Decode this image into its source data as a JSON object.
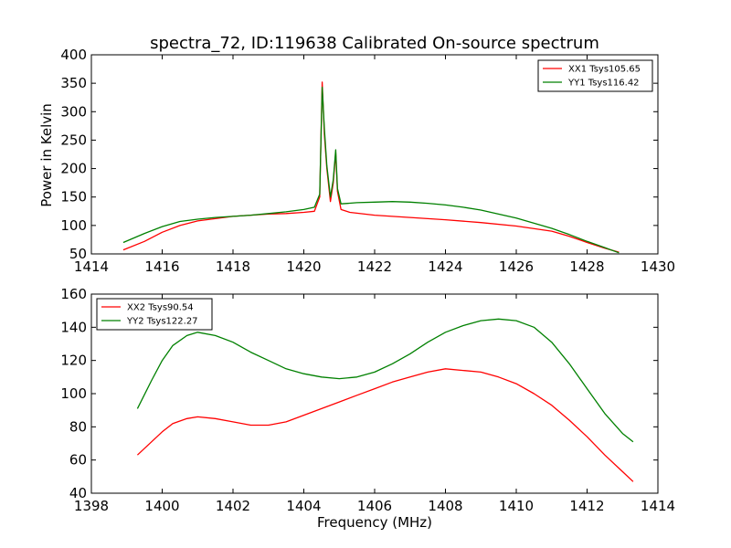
{
  "chart_data": [
    {
      "type": "line",
      "title": "spectra_72, ID:119638 Calibrated On-source spectrum",
      "xlabel": "",
      "ylabel": "Power in Kelvin",
      "xlim": [
        1414,
        1430
      ],
      "ylim": [
        50,
        400
      ],
      "xticks": [
        "1414",
        "1416",
        "1418",
        "1420",
        "1422",
        "1424",
        "1426",
        "1428",
        "1430"
      ],
      "yticks": [
        "50",
        "100",
        "150",
        "200",
        "250",
        "300",
        "350",
        "400"
      ],
      "legend": "top-right",
      "grid": false,
      "series": [
        {
          "name": "XX1 Tsys105.65",
          "color": "#ff0000",
          "x": [
            1414.9,
            1415.5,
            1416.0,
            1416.5,
            1417.0,
            1417.5,
            1418.0,
            1418.5,
            1419.0,
            1419.5,
            1420.0,
            1420.3,
            1420.45,
            1420.52,
            1420.58,
            1420.65,
            1420.75,
            1420.83,
            1420.9,
            1420.95,
            1421.05,
            1421.3,
            1422.0,
            1423.0,
            1424.0,
            1425.0,
            1426.0,
            1427.0,
            1427.5,
            1428.0,
            1428.5,
            1428.9
          ],
          "y": [
            57,
            72,
            88,
            100,
            108,
            112,
            116,
            118,
            120,
            121,
            123,
            125,
            150,
            352,
            260,
            200,
            142,
            175,
            228,
            160,
            128,
            123,
            118,
            114,
            110,
            105,
            99,
            90,
            81,
            70,
            60,
            53
          ]
        },
        {
          "name": "YY1 Tsys116.42",
          "color": "#008000",
          "x": [
            1414.9,
            1415.5,
            1416.0,
            1416.5,
            1417.0,
            1417.5,
            1418.0,
            1418.5,
            1419.0,
            1419.5,
            1420.0,
            1420.3,
            1420.45,
            1420.52,
            1420.58,
            1420.65,
            1420.75,
            1420.83,
            1420.9,
            1420.95,
            1421.05,
            1421.5,
            1422.0,
            1422.5,
            1423.0,
            1423.5,
            1424.0,
            1424.5,
            1425.0,
            1425.5,
            1426.0,
            1426.5,
            1427.0,
            1427.5,
            1428.0,
            1428.5,
            1428.9
          ],
          "y": [
            70,
            86,
            98,
            107,
            111,
            114,
            116,
            118,
            121,
            124,
            128,
            132,
            155,
            343,
            270,
            205,
            150,
            180,
            233,
            165,
            138,
            140,
            141,
            142,
            141,
            139,
            136,
            132,
            127,
            120,
            113,
            104,
            95,
            84,
            72,
            61,
            52
          ]
        }
      ]
    },
    {
      "type": "line",
      "title": "",
      "xlabel": "Frequency (MHz)",
      "ylabel": "",
      "xlim": [
        1398,
        1414
      ],
      "ylim": [
        40,
        160
      ],
      "xticks": [
        "1398",
        "1400",
        "1402",
        "1404",
        "1406",
        "1408",
        "1410",
        "1412",
        "1414"
      ],
      "yticks": [
        "40",
        "60",
        "80",
        "100",
        "120",
        "140",
        "160"
      ],
      "legend": "top-left",
      "grid": false,
      "series": [
        {
          "name": "XX2 Tsys90.54",
          "color": "#ff0000",
          "x": [
            1399.3,
            1399.7,
            1400.0,
            1400.3,
            1400.7,
            1401.0,
            1401.5,
            1402.0,
            1402.5,
            1403.0,
            1403.5,
            1404.0,
            1404.5,
            1405.0,
            1405.5,
            1406.0,
            1406.5,
            1407.0,
            1407.5,
            1408.0,
            1408.5,
            1409.0,
            1409.5,
            1410.0,
            1410.5,
            1411.0,
            1411.5,
            1412.0,
            1412.5,
            1413.0,
            1413.3
          ],
          "y": [
            63,
            71,
            77,
            82,
            85,
            86,
            85,
            83,
            81,
            81,
            83,
            87,
            91,
            95,
            99,
            103,
            107,
            110,
            113,
            115,
            114,
            113,
            110,
            106,
            100,
            93,
            84,
            74,
            63,
            53,
            47
          ]
        },
        {
          "name": "YY2 Tsys122.27",
          "color": "#008000",
          "x": [
            1399.3,
            1399.7,
            1400.0,
            1400.3,
            1400.7,
            1401.0,
            1401.5,
            1402.0,
            1402.5,
            1403.0,
            1403.5,
            1404.0,
            1404.5,
            1405.0,
            1405.5,
            1406.0,
            1406.5,
            1407.0,
            1407.5,
            1408.0,
            1408.5,
            1409.0,
            1409.5,
            1410.0,
            1410.5,
            1411.0,
            1411.5,
            1412.0,
            1412.5,
            1413.0,
            1413.3
          ],
          "y": [
            91,
            108,
            120,
            129,
            135,
            137,
            135,
            131,
            125,
            120,
            115,
            112,
            110,
            109,
            110,
            113,
            118,
            124,
            131,
            137,
            141,
            144,
            145,
            144,
            140,
            131,
            118,
            103,
            88,
            76,
            71
          ]
        }
      ]
    }
  ]
}
